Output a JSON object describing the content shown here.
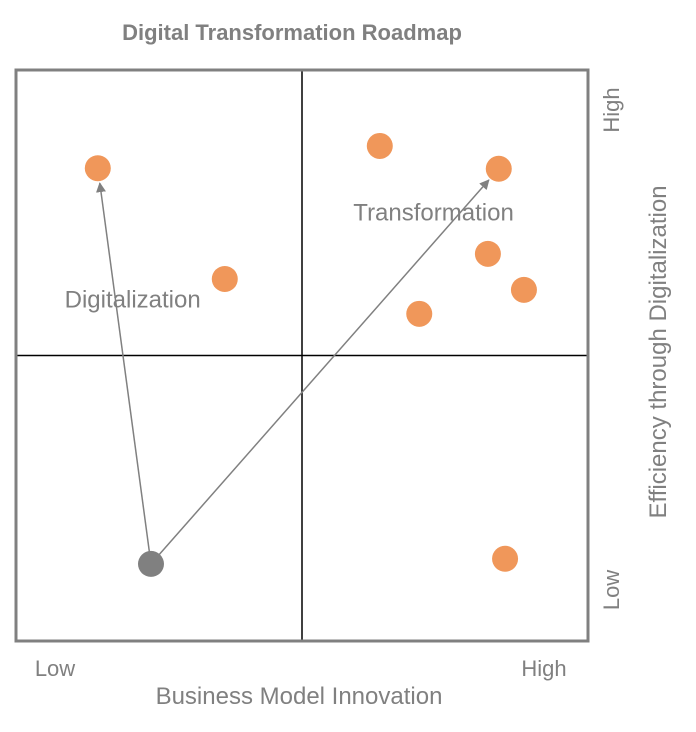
{
  "chart_data": {
    "type": "scatter",
    "title": "Digital Transformation Roadmap",
    "xlabel": "Business Model Innovation",
    "ylabel": "Efficiency through Digitalization",
    "x_tick_labels": {
      "low": "Low",
      "high": "High"
    },
    "y_tick_labels": {
      "low": "Low",
      "high": "High"
    },
    "xlim": [
      0,
      10
    ],
    "ylim": [
      0,
      10
    ],
    "quadrant_dividers": {
      "x": 5,
      "y": 5
    },
    "grid": false,
    "quadrant_labels": [
      {
        "text": "Digitalization",
        "x": 2.04,
        "y": 5.84
      },
      {
        "text": "Transformation",
        "x": 7.3,
        "y": 7.36
      }
    ],
    "points": [
      {
        "x": 1.43,
        "y": 8.28
      },
      {
        "x": 3.65,
        "y": 6.34
      },
      {
        "x": 6.36,
        "y": 8.67
      },
      {
        "x": 8.44,
        "y": 8.27
      },
      {
        "x": 8.25,
        "y": 6.78
      },
      {
        "x": 8.88,
        "y": 6.15
      },
      {
        "x": 7.05,
        "y": 5.73
      },
      {
        "x": 8.55,
        "y": 1.44
      }
    ],
    "origin_point": {
      "x": 2.36,
      "y": 1.35
    },
    "arrows": [
      {
        "from": {
          "x": 2.36,
          "y": 1.35
        },
        "to": {
          "x": 1.43,
          "y": 8.28
        }
      },
      {
        "from": {
          "x": 2.36,
          "y": 1.35
        },
        "to": {
          "x": 8.44,
          "y": 8.27
        }
      }
    ],
    "colors": {
      "points": "#F0975A",
      "origin_point": "#808080",
      "arrows": "#808080",
      "frame": "#808080",
      "dividers": "#000000"
    }
  }
}
